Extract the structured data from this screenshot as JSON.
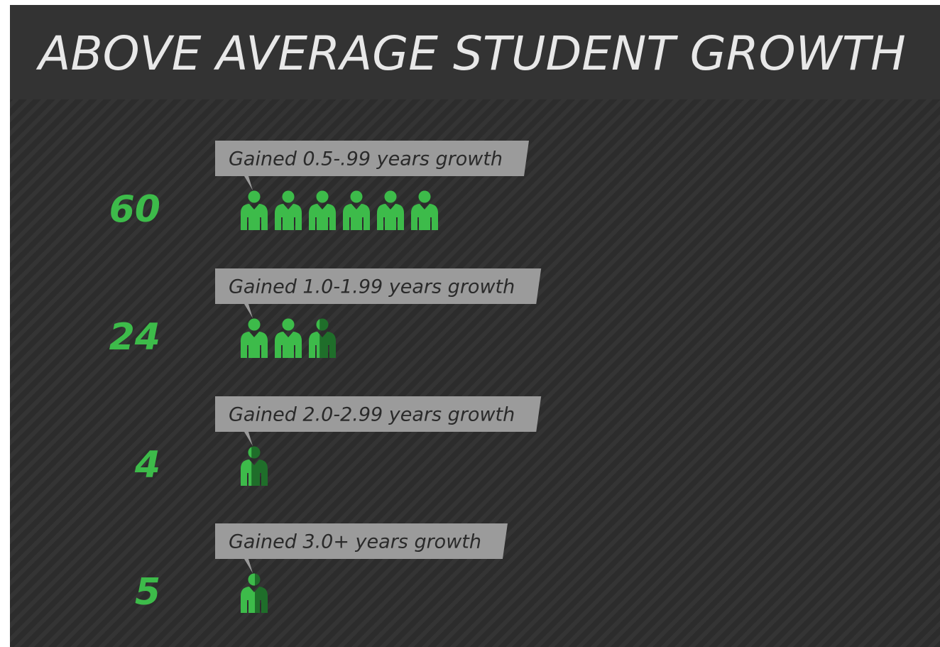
{
  "chart_data": {
    "type": "pictograph",
    "title": "ABOVE AVERAGE STUDENT GROWTH",
    "categories": [
      "Gained 0.5-.99 years growth",
      "Gained 1.0-1.99 years growth",
      "Gained 2.0-2.99 years growth",
      "Gained 3.0+ years growth"
    ],
    "values": [
      60,
      24,
      4,
      5
    ],
    "color": "#3dbb4a"
  }
}
